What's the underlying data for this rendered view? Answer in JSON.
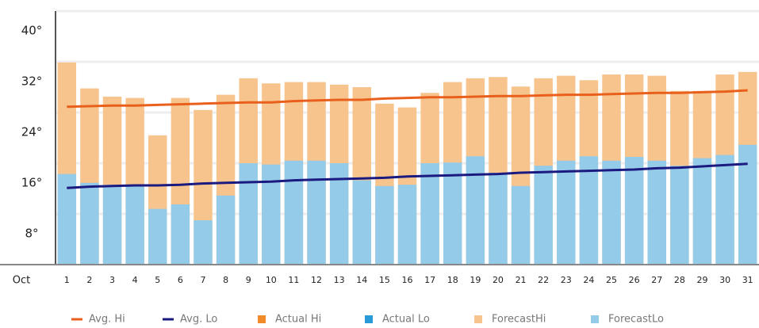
{
  "chart_data": {
    "type": "bar",
    "month": "Oct",
    "categories": [
      "1",
      "2",
      "3",
      "4",
      "5",
      "6",
      "7",
      "8",
      "9",
      "10",
      "11",
      "12",
      "13",
      "14",
      "15",
      "16",
      "17",
      "18",
      "19",
      "20",
      "21",
      "22",
      "23",
      "24",
      "25",
      "26",
      "27",
      "28",
      "29",
      "30",
      "31"
    ],
    "series": [
      {
        "name": "Avg. Hi",
        "type": "line",
        "color": "#e8601c",
        "values": [
          24.9,
          25.0,
          25.1,
          25.1,
          25.2,
          25.3,
          25.4,
          25.5,
          25.6,
          25.6,
          25.8,
          25.9,
          26.0,
          26.0,
          26.2,
          26.3,
          26.4,
          26.4,
          26.5,
          26.6,
          26.6,
          26.7,
          26.8,
          26.8,
          26.9,
          27.0,
          27.1,
          27.1,
          27.2,
          27.3,
          27.5
        ]
      },
      {
        "name": "Avg. Lo",
        "type": "line",
        "color": "#1a1a80",
        "values": [
          12.1,
          12.3,
          12.4,
          12.5,
          12.5,
          12.6,
          12.8,
          12.9,
          13.0,
          13.1,
          13.3,
          13.4,
          13.5,
          13.6,
          13.7,
          13.9,
          14.0,
          14.1,
          14.2,
          14.3,
          14.5,
          14.6,
          14.7,
          14.8,
          14.9,
          15.0,
          15.2,
          15.3,
          15.5,
          15.7,
          15.9
        ]
      },
      {
        "name": "Actual Hi",
        "type": "bar",
        "color": "#f08a2a",
        "values": [
          null,
          null,
          null,
          null,
          null,
          null,
          null,
          null,
          null,
          null,
          null,
          null,
          null,
          null,
          null,
          null,
          null,
          null,
          null,
          null,
          null,
          null,
          null,
          null,
          null,
          null,
          null,
          null,
          null,
          null,
          null
        ]
      },
      {
        "name": "Actual Lo",
        "type": "bar",
        "color": "#2a9ad8",
        "values": [
          null,
          null,
          null,
          null,
          null,
          null,
          null,
          null,
          null,
          null,
          null,
          null,
          null,
          null,
          null,
          null,
          null,
          null,
          null,
          null,
          null,
          null,
          null,
          null,
          null,
          null,
          null,
          null,
          null,
          null,
          null
        ]
      },
      {
        "name": "ForecastHi",
        "type": "bar",
        "color": "#f8c48e",
        "values": [
          31.9,
          27.8,
          26.5,
          26.3,
          20.4,
          26.3,
          24.4,
          26.8,
          29.4,
          28.6,
          28.8,
          28.8,
          28.4,
          28.0,
          25.4,
          24.8,
          27.1,
          28.8,
          29.4,
          29.6,
          28.1,
          29.4,
          29.8,
          29.1,
          30.0,
          30.0,
          29.8,
          27.4,
          27.4,
          30.0,
          30.4
        ]
      },
      {
        "name": "ForecastLo",
        "type": "bar",
        "color": "#94cbe8",
        "values": [
          14.3,
          12.9,
          12.6,
          12.5,
          8.8,
          9.5,
          7.0,
          10.9,
          16.0,
          15.8,
          16.4,
          16.4,
          16.0,
          13.3,
          12.4,
          12.6,
          16.0,
          16.1,
          17.1,
          14.5,
          12.4,
          15.6,
          16.4,
          17.1,
          16.4,
          17.0,
          16.4,
          15.6,
          16.8,
          17.3,
          18.9
        ]
      }
    ],
    "ylim": [
      0,
      40
    ],
    "yticks": [
      {
        "value": 8,
        "label": "8°"
      },
      {
        "value": 16,
        "label": "16°"
      },
      {
        "value": 24,
        "label": "24°"
      },
      {
        "value": 32,
        "label": "32°"
      },
      {
        "value": 40,
        "label": "40°"
      }
    ],
    "grid": true
  }
}
